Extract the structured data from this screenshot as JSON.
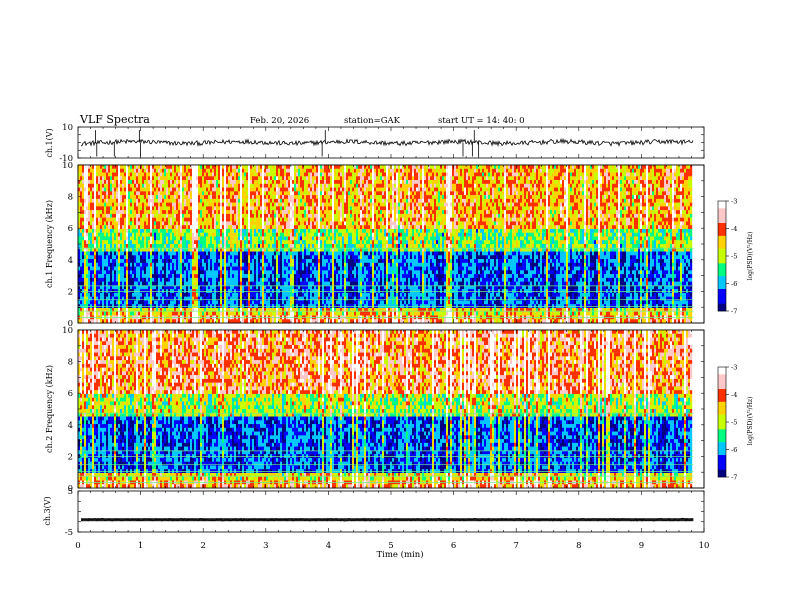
{
  "header": {
    "title": "VLF  Spectra",
    "date": "Feb. 20, 2026",
    "station": "station=GAK",
    "start": "start  UT  =    14: 40: 0"
  },
  "chart_data": [
    {
      "type": "line",
      "name": "ch1-waveform",
      "ylabel": "ch.1(V)",
      "ylim": [
        -10,
        10
      ],
      "yticks": [
        "10",
        "-10"
      ],
      "baseline": 0,
      "spikes_x_min": [
        0.28,
        0.3,
        0.58,
        0.98,
        1.0,
        3.9,
        3.95,
        6.15,
        6.3,
        6.33,
        6.4
      ]
    },
    {
      "type": "heatmap",
      "name": "ch1-spectrogram",
      "ylabel": "ch.1 Frequency  (kHz)",
      "ylim": [
        0,
        10
      ],
      "yticks": [
        "0",
        "2",
        "4",
        "6",
        "8",
        "10"
      ],
      "colorbar": {
        "label": "log(PSD)(V²/Hz)",
        "range": [
          -7,
          -3
        ],
        "ticks": [
          "-3",
          "-4",
          "-5",
          "-6",
          "-7"
        ]
      }
    },
    {
      "type": "heatmap",
      "name": "ch2-spectrogram",
      "ylabel": "ch.2 Frequency  (kHz)",
      "ylim": [
        0,
        10
      ],
      "yticks": [
        "0",
        "2",
        "4",
        "6",
        "8",
        "10"
      ],
      "colorbar": {
        "label": "log(PSD)(V²/Hz)",
        "range": [
          -7,
          -3
        ],
        "ticks": [
          "-3",
          "-4",
          "-5",
          "-6",
          "-7"
        ]
      }
    },
    {
      "type": "line",
      "name": "ch3-waveform",
      "ylabel": "ch.3(V)",
      "ylim": [
        -5,
        5
      ],
      "yticks": [
        "5",
        "-5"
      ],
      "baseline": -2
    }
  ],
  "xaxis": {
    "label": "Time  (min)",
    "xlim": [
      0,
      10
    ],
    "ticks": [
      "0",
      "1",
      "2",
      "3",
      "4",
      "5",
      "6",
      "7",
      "8",
      "9",
      "10"
    ],
    "data_end": 9.83
  },
  "colors": {
    "line": "#000000",
    "colormap": [
      "#000080",
      "#0000ff",
      "#00c8ff",
      "#00ff80",
      "#c8ff00",
      "#ffd200",
      "#ff3000",
      "#ffc8c8",
      "#ffffff"
    ]
  }
}
